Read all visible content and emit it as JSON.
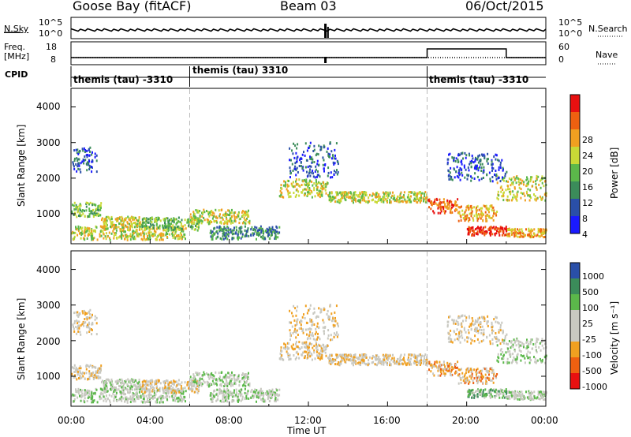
{
  "header": {
    "station": "Goose Bay (fitACF)",
    "beam": "Beam 03",
    "date": "06/Oct/2015"
  },
  "noise_panel": {
    "left_label": "N.Sky",
    "right_label": "N.Search",
    "left_ticks": [
      "10^5",
      "10^0"
    ],
    "right_ticks": [
      "10^5",
      "10^0"
    ]
  },
  "freq_panel": {
    "left_label_line1": "Freq.",
    "left_label_line2": "[MHz]",
    "right_label": "Nave",
    "left_ticks": [
      "18",
      "8"
    ],
    "right_ticks": [
      "60",
      "0"
    ]
  },
  "cpid_panel": {
    "label": "CPID",
    "segments": [
      {
        "start_hour": 0,
        "text": "themis (tau) -3310"
      },
      {
        "start_hour": 6,
        "text": "themis (tau) 3310"
      },
      {
        "start_hour": 18,
        "text": "themis (tau) -3310"
      }
    ]
  },
  "colors": {
    "power": [
      "#1a1aff",
      "#2a4fa8",
      "#3b8c5a",
      "#5bb84a",
      "#c8d936",
      "#f0a020",
      "#ee6010",
      "#e81010"
    ],
    "velocity": [
      "#e81010",
      "#ee6010",
      "#f0a020",
      "#c8c8c0",
      "#c8c8c0",
      "#5bb84a",
      "#3b8c5a",
      "#2a4fa8"
    ],
    "grid_dash": "#bbbbbb"
  },
  "chart_data": [
    {
      "type": "heatmap",
      "panel": "power",
      "ylabel": "Slant Range [km]",
      "ylim": [
        180,
        4500
      ],
      "yticks": [
        "1000",
        "2000",
        "3000",
        "4000"
      ],
      "xlim_hours": [
        0,
        24
      ],
      "xticks": [
        "00:00",
        "04:00",
        "08:00",
        "12:00",
        "16:00",
        "20:00",
        "00:00"
      ],
      "colorbar_label": "Power [dB]",
      "colorbar_ticks": [
        "4",
        "8",
        "12",
        "16",
        "20",
        "24",
        "28"
      ],
      "colorbar_range": [
        0,
        32
      ]
    },
    {
      "type": "heatmap",
      "panel": "velocity",
      "ylabel": "Slant Range [km]",
      "ylim": [
        180,
        4500
      ],
      "yticks": [
        "1000",
        "2000",
        "3000",
        "4000"
      ],
      "xlim_hours": [
        0,
        24
      ],
      "xticks": [
        "00:00",
        "04:00",
        "08:00",
        "12:00",
        "16:00",
        "20:00",
        "00:00"
      ],
      "xlabel": "Time UT",
      "colorbar_label": "Velocity [m s⁻¹]",
      "colorbar_ticks": [
        "1000",
        "500",
        "100",
        "25",
        "-25",
        "-100",
        "-500",
        "-1000"
      ]
    }
  ]
}
